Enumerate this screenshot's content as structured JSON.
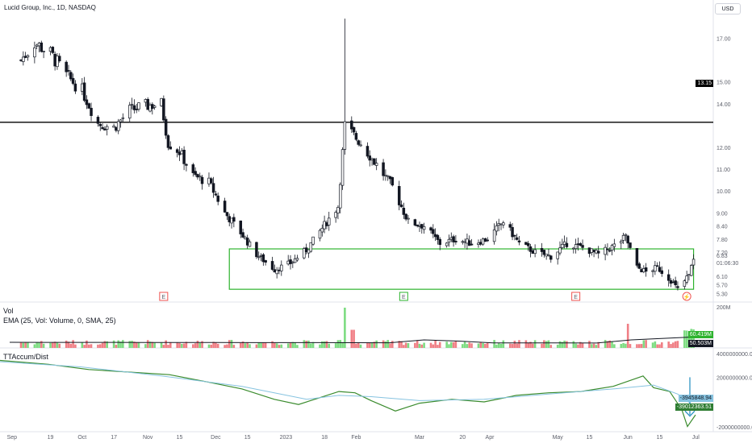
{
  "header": {
    "title": "Lucid Group, Inc., 1D, NASDAQ",
    "currency": "USD"
  },
  "price_axis": [
    "17.00",
    "15.00",
    "14.00",
    "12.00",
    "11.00",
    "10.00",
    "9.00",
    "8.40",
    "7.80",
    "7.20",
    "6.10",
    "5.70",
    "5.30"
  ],
  "price_labels": {
    "level": "13.15",
    "last": "6.83",
    "countdown": "01:06:30",
    "mid_price": "6.60"
  },
  "volume_panel": {
    "title": "Vol",
    "ema_label": "EMA (25, Vol: Volume, 0, SMA, 25)",
    "axis_top": "200M",
    "tag_green": "60.419M",
    "tag_dark": "50.503M"
  },
  "acc_panel": {
    "title": "TTAccum/Dist",
    "axis_top": "4000000000.00",
    "axis_mid": "2000000000.00",
    "axis_bottom": "-2000000000.00",
    "tag_blue": "-3945848.94",
    "tag_dark": "-39012363.51"
  },
  "x_axis": [
    "Sep",
    "19",
    "Oct",
    "17",
    "Nov",
    "15",
    "Dec",
    "15",
    "2023",
    "18",
    "Feb",
    "Mar",
    "20",
    "Apr",
    "May",
    "15",
    "Jun",
    "15",
    "Jul"
  ],
  "event_markers": [
    "E",
    "E",
    "E",
    "⚡"
  ],
  "colors": {
    "up": "#26a69a",
    "down": "#ef5350",
    "line": "#000000",
    "box": "#2eb32e",
    "acc": "#3a8b2d",
    "ma": "#86c3e0",
    "arrow": "#2f95c4"
  },
  "chart_data": [
    {
      "type": "candlestick",
      "title": "Lucid Group, Inc., 1D, NASDAQ",
      "x_range": [
        "Sep",
        "Jul"
      ],
      "ylim": [
        5.1,
        18.2
      ],
      "horizontal_line": 13.15,
      "annotation_box": {
        "date_range": [
          "Dec 07",
          "Jun 30"
        ],
        "price_range": [
          5.5,
          7.35
        ]
      },
      "last_price": 6.83,
      "close_path": [
        [
          "Sep 06",
          16.0
        ],
        [
          "Sep 12",
          16.8
        ],
        [
          "Sep 19",
          16.3
        ],
        [
          "Sep 26",
          15.3
        ],
        [
          "Oct 03",
          14.6
        ],
        [
          "Oct 10",
          13.1
        ],
        [
          "Oct 17",
          12.9
        ],
        [
          "Oct 24",
          13.7
        ],
        [
          "Oct 31",
          13.9
        ],
        [
          "Nov 07",
          14.0
        ],
        [
          "Nov 10",
          12.2
        ],
        [
          "Nov 15",
          11.8
        ],
        [
          "Nov 21",
          10.7
        ],
        [
          "Nov 28",
          10.4
        ],
        [
          "Dec 05",
          9.0
        ],
        [
          "Dec 12",
          8.1
        ],
        [
          "Dec 19",
          7.1
        ],
        [
          "Dec 27",
          6.4
        ],
        [
          "Jan 03",
          6.7
        ],
        [
          "Jan 10",
          7.3
        ],
        [
          "Jan 17",
          8.3
        ],
        [
          "Jan 24",
          9.3
        ],
        [
          "Jan 27",
          13.0
        ],
        [
          "Feb 03",
          12.2
        ],
        [
          "Feb 10",
          11.2
        ],
        [
          "Feb 17",
          10.2
        ],
        [
          "Feb 24",
          8.6
        ],
        [
          "Mar 03",
          8.4
        ],
        [
          "Mar 10",
          7.6
        ],
        [
          "Mar 17",
          7.8
        ],
        [
          "Mar 24",
          7.6
        ],
        [
          "Mar 31",
          7.8
        ],
        [
          "Apr 07",
          8.6
        ],
        [
          "Apr 14",
          7.6
        ],
        [
          "Apr 21",
          7.2
        ],
        [
          "Apr 28",
          7.0
        ],
        [
          "May 05",
          7.6
        ],
        [
          "May 12",
          7.4
        ],
        [
          "May 19",
          7.1
        ],
        [
          "May 26",
          7.5
        ],
        [
          "May 31",
          7.9
        ],
        [
          "Jun 05",
          6.5
        ],
        [
          "Jun 09",
          6.3
        ],
        [
          "Jun 14",
          6.5
        ],
        [
          "Jun 20",
          5.9
        ],
        [
          "Jun 23",
          5.5
        ],
        [
          "Jun 27",
          6.0
        ],
        [
          "Jun 30",
          6.83
        ]
      ]
    },
    {
      "type": "bar",
      "title": "Vol",
      "overlay_series": "EMA (25, Vol: Volume, 0, SMA, 25)",
      "values": {
        "ema_last_M": 60.419,
        "sma_last_M": 50.503
      },
      "ylim_M": [
        0,
        200
      ],
      "spikes": [
        [
          "Jan 27",
          200
        ],
        [
          "Jun 01",
          120
        ],
        [
          "Jun 27",
          95
        ]
      ]
    },
    {
      "type": "line",
      "title": "TTAccum/Dist",
      "ylim": [
        -2000000000,
        4000000000
      ],
      "last_values": [
        -3945848.94,
        -39012363.51
      ]
    }
  ]
}
